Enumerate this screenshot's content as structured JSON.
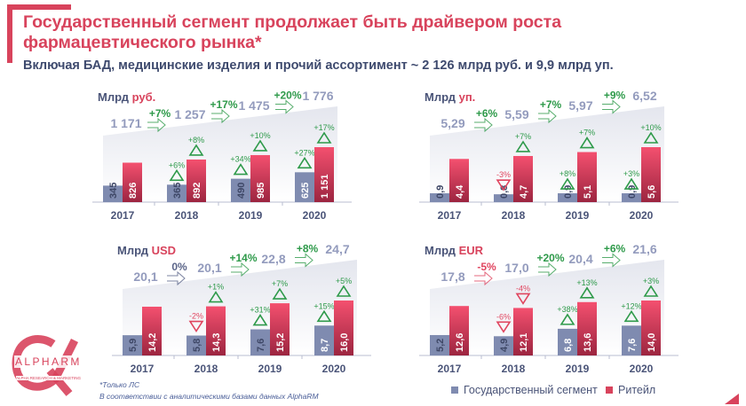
{
  "header": {
    "title": "Государственный сегмент продолжает быть драйвером роста фармацевтического рынка*",
    "subtitle": "Включая БАД, медицинские изделия и прочий ассортимент ~ 2 126 млрд руб. и 9,9 млрд уп."
  },
  "colors": {
    "accent": "#d8435c",
    "gov": "#7f8bb0",
    "retail": "#e0455f",
    "green": "#2e9a4a",
    "totals": "#939bbd"
  },
  "chart_data": [
    {
      "type": "bar",
      "title_prefix": "Млрд",
      "title_unit": "руб.",
      "categories": [
        "2017",
        "2018",
        "2019",
        "2020"
      ],
      "series": [
        {
          "name": "Государственный сегмент",
          "values": [
            345,
            365,
            490,
            625
          ],
          "labels": [
            "345",
            "365",
            "490",
            "625"
          ],
          "changes": [
            null,
            "+6%",
            "+34%",
            "+27%"
          ]
        },
        {
          "name": "Ритейл",
          "values": [
            826,
            892,
            985,
            1151
          ],
          "labels": [
            "826",
            "892",
            "985",
            "1 151"
          ],
          "changes": [
            null,
            "+8%",
            "+10%",
            "+17%"
          ]
        }
      ],
      "totals": [
        "1 171",
        "1 257",
        "1 475",
        "1 776"
      ],
      "growth": [
        "+7%",
        "+17%",
        "+20%"
      ],
      "ymax": 1151
    },
    {
      "type": "bar",
      "title_prefix": "Млрд",
      "title_unit": "уп.",
      "categories": [
        "2017",
        "2018",
        "2019",
        "2020"
      ],
      "series": [
        {
          "name": "Государственный сегмент",
          "values": [
            0.9,
            0.8,
            0.9,
            0.9
          ],
          "labels": [
            "0,9",
            "0,8",
            "0,9",
            "0,9"
          ],
          "changes": [
            null,
            "-3%",
            "+8%",
            "+3%"
          ]
        },
        {
          "name": "Ритейл",
          "values": [
            4.4,
            4.7,
            5.1,
            5.6
          ],
          "labels": [
            "4,4",
            "4,7",
            "5,1",
            "5,6"
          ],
          "changes": [
            null,
            "+7%",
            "+7%",
            "+10%"
          ]
        }
      ],
      "totals": [
        "5,29",
        "5,59",
        "5,97",
        "6,52"
      ],
      "growth": [
        "+6%",
        "+7%",
        "+9%"
      ],
      "ymax": 5.6
    },
    {
      "type": "bar",
      "title_prefix": "Млрд",
      "title_unit": "USD",
      "categories": [
        "2017",
        "2018",
        "2019",
        "2020"
      ],
      "series": [
        {
          "name": "Государственный сегмент",
          "values": [
            5.9,
            5.8,
            7.6,
            8.7
          ],
          "labels": [
            "5,9",
            "5,8",
            "7,6",
            "8,7"
          ],
          "changes": [
            null,
            "-2%",
            "+31%",
            "+15%"
          ]
        },
        {
          "name": "Ритейл",
          "values": [
            14.2,
            14.3,
            15.2,
            16.0
          ],
          "labels": [
            "14,2",
            "14,3",
            "15,2",
            "16,0"
          ],
          "changes": [
            null,
            "+1%",
            "+7%",
            "+5%"
          ]
        }
      ],
      "totals": [
        "20,1",
        "20,1",
        "22,8",
        "24,7"
      ],
      "growth": [
        "0%",
        "+14%",
        "+8%"
      ],
      "ymax": 16.0
    },
    {
      "type": "bar",
      "title_prefix": "Млрд",
      "title_unit": "EUR",
      "categories": [
        "2017",
        "2018",
        "2019",
        "2020"
      ],
      "series": [
        {
          "name": "Государственный сегмент",
          "values": [
            5.2,
            4.9,
            6.8,
            7.6
          ],
          "labels": [
            "5,2",
            "4,9",
            "6,8",
            "7,6"
          ],
          "changes": [
            null,
            "-6%",
            "+38%",
            "+12%"
          ]
        },
        {
          "name": "Ритейл",
          "values": [
            12.6,
            12.1,
            13.6,
            14.0
          ],
          "labels": [
            "12,6",
            "12,1",
            "13,6",
            "14,0"
          ],
          "changes": [
            null,
            "-4%",
            "+13%",
            "+3%"
          ]
        }
      ],
      "totals": [
        "17,8",
        "17,0",
        "20,4",
        "21,6"
      ],
      "growth": [
        "-5%",
        "+20%",
        "+6%"
      ],
      "ymax": 14.0
    }
  ],
  "legend": {
    "gov": "Государственный сегмент",
    "retail": "Ритейл"
  },
  "footnotes": {
    "note1": "*Только ЛС",
    "note2": "В соответствии с аналитическими базами данных AlphaRM"
  },
  "logo": {
    "name": "ALPHARM",
    "tagline": "ALPHA RESEARCH & MARKETING"
  }
}
